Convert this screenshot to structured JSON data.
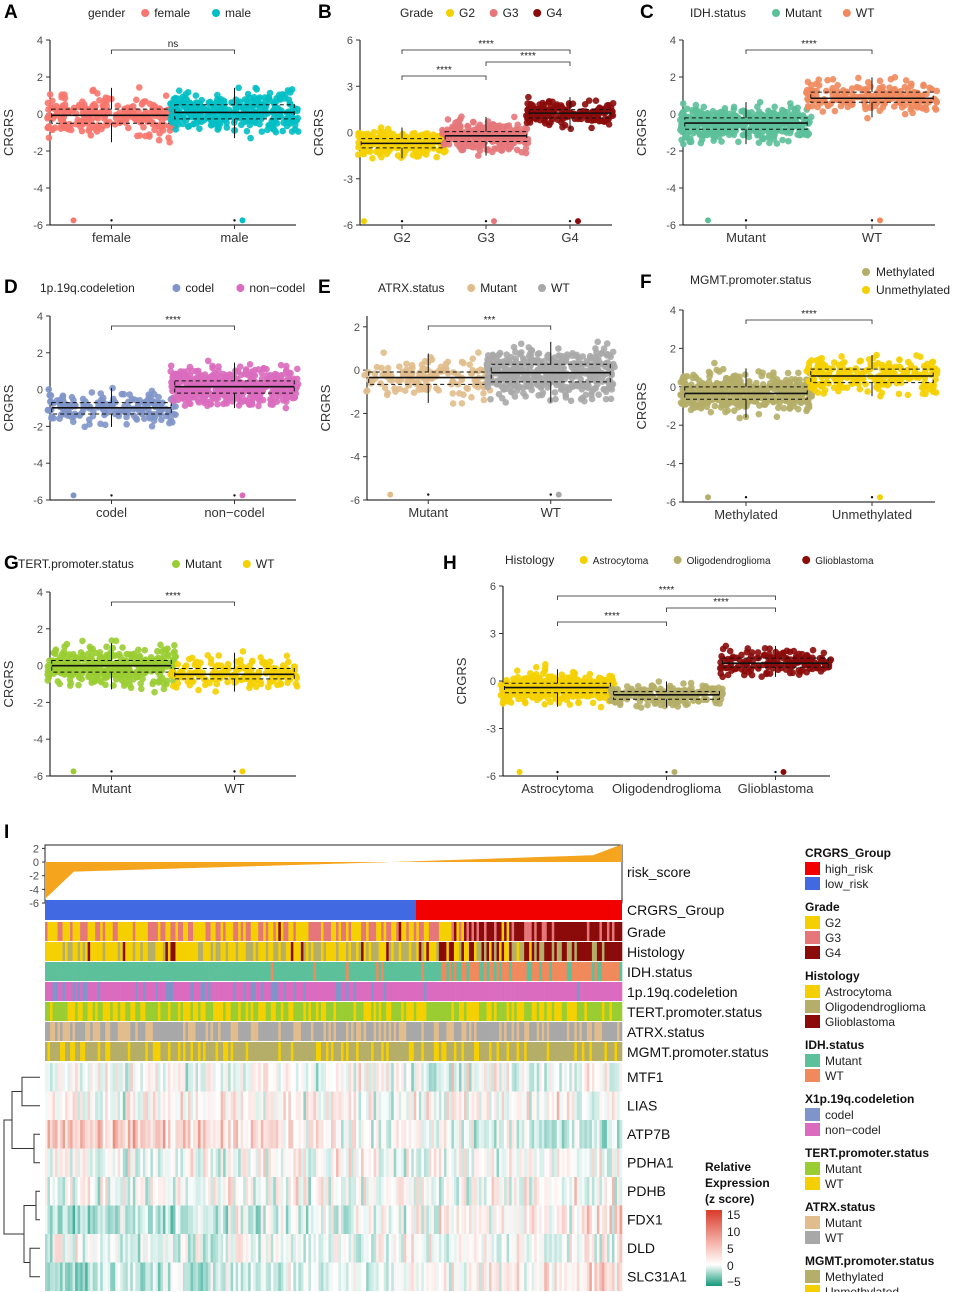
{
  "chart_data": [
    {
      "panel": "A",
      "type": "scatter",
      "legend_title": "gender",
      "ylabel": "CRGRS",
      "ylim": [
        -6,
        4
      ],
      "yticks": [
        -6,
        -4,
        -2,
        0,
        2,
        4
      ],
      "categories": [
        "female",
        "male"
      ],
      "colors": [
        "#F8766D",
        "#00BFC4"
      ],
      "medians": [
        -0.1,
        0.05
      ],
      "comparisons": [
        {
          "a": 0,
          "b": 1,
          "label": "ns"
        }
      ]
    },
    {
      "panel": "B",
      "type": "scatter",
      "legend_title": "Grade",
      "ylabel": "CRGRS",
      "ylim": [
        -6,
        6
      ],
      "yticks": [
        -6,
        -3,
        0,
        3,
        6
      ],
      "categories": [
        "G2",
        "G3",
        "G4"
      ],
      "colors": [
        "#F5D000",
        "#E5777A",
        "#8B0A0A"
      ],
      "medians": [
        -0.7,
        -0.2,
        1.2
      ],
      "comparisons": [
        {
          "a": 0,
          "b": 1,
          "label": "****"
        },
        {
          "a": 1,
          "b": 2,
          "label": "****"
        },
        {
          "a": 0,
          "b": 2,
          "label": "****"
        }
      ]
    },
    {
      "panel": "C",
      "type": "scatter",
      "legend_title": "IDH.status",
      "ylabel": "CRGRS",
      "ylim": [
        -6,
        4
      ],
      "yticks": [
        -6,
        -4,
        -2,
        0,
        2,
        4
      ],
      "categories": [
        "Mutant",
        "WT"
      ],
      "colors": [
        "#5CC09A",
        "#F08A5D"
      ],
      "medians": [
        -0.5,
        0.9
      ],
      "comparisons": [
        {
          "a": 0,
          "b": 1,
          "label": "****"
        }
      ]
    },
    {
      "panel": "D",
      "type": "scatter",
      "legend_title": "1p.19q.codeletion",
      "ylabel": "CRGRS",
      "ylim": [
        -6,
        4
      ],
      "yticks": [
        -6,
        -4,
        -2,
        0,
        2,
        4
      ],
      "categories": [
        "codel",
        "non−codel"
      ],
      "colors": [
        "#7F95C9",
        "#DA6BBE"
      ],
      "medians": [
        -1.0,
        0.2
      ],
      "comparisons": [
        {
          "a": 0,
          "b": 1,
          "label": "****"
        }
      ]
    },
    {
      "panel": "E",
      "type": "scatter",
      "legend_title": "ATRX.status",
      "ylabel": "CRGRS",
      "ylim": [
        -6,
        2.5
      ],
      "yticks": [
        -6,
        -4,
        -2,
        0,
        2
      ],
      "categories": [
        "Mutant",
        "WT"
      ],
      "colors": [
        "#E1BC8C",
        "#A8A8A8"
      ],
      "medians": [
        -0.4,
        -0.1
      ],
      "comparisons": [
        {
          "a": 0,
          "b": 1,
          "label": "***"
        }
      ]
    },
    {
      "panel": "F",
      "type": "scatter",
      "legend_title": "MGMT.promoter.status",
      "ylabel": "CRGRS",
      "ylim": [
        -6,
        4
      ],
      "yticks": [
        -6,
        -4,
        -2,
        0,
        2,
        4
      ],
      "categories": [
        "Methylated",
        "Unmethylated"
      ],
      "colors": [
        "#B5AE68",
        "#F5D000"
      ],
      "medians": [
        -0.3,
        0.6
      ],
      "comparisons": [
        {
          "a": 0,
          "b": 1,
          "label": "****"
        }
      ]
    },
    {
      "panel": "G",
      "type": "scatter",
      "legend_title": "TERT.promoter.status",
      "ylabel": "CRGRS",
      "ylim": [
        -6,
        4
      ],
      "yticks": [
        -6,
        -4,
        -2,
        0,
        2,
        4
      ],
      "categories": [
        "Mutant",
        "WT"
      ],
      "colors": [
        "#9ACD32",
        "#F5D000"
      ],
      "medians": [
        0.0,
        -0.4
      ],
      "comparisons": [
        {
          "a": 0,
          "b": 1,
          "label": "****"
        }
      ]
    },
    {
      "panel": "H",
      "type": "scatter",
      "legend_title": "Histology",
      "ylabel": "CRGRS",
      "ylim": [
        -6,
        6
      ],
      "yticks": [
        -6,
        -3,
        0,
        3,
        6
      ],
      "categories": [
        "Astrocytoma",
        "Oligodendroglioma",
        "Glioblastoma"
      ],
      "colors": [
        "#F5D000",
        "#B5AE68",
        "#8B0A0A"
      ],
      "medians": [
        -0.4,
        -0.9,
        1.2
      ],
      "comparisons": [
        {
          "a": 0,
          "b": 1,
          "label": "****"
        },
        {
          "a": 1,
          "b": 2,
          "label": "****"
        },
        {
          "a": 0,
          "b": 2,
          "label": "****"
        }
      ]
    },
    {
      "panel": "I",
      "type": "heatmap",
      "risk_score": {
        "label": "risk_score",
        "ylim": [
          -6,
          2.5
        ],
        "yticks": [
          2,
          0,
          -2,
          -4,
          -6
        ]
      },
      "annotation_rows": [
        "CRGRS_Group",
        "Grade",
        "Histology",
        "IDH.status",
        "1p.19q.codeletion",
        "TERT.promoter.status",
        "ATRX.status",
        "MGMT.promoter.status"
      ],
      "gene_rows": [
        "MTF1",
        "LIAS",
        "ATP7B",
        "PDHA1",
        "PDHB",
        "FDX1",
        "DLD",
        "SLC31A1"
      ],
      "color_scale": {
        "title_lines": [
          "Relative",
          "Expression",
          "(z score)"
        ],
        "ticks": [
          "15",
          "10",
          "5",
          "0",
          "−5"
        ]
      },
      "legend_groups": [
        {
          "title": "CRGRS_Group",
          "items": [
            {
              "label": "high_risk",
              "color": "#F20000"
            },
            {
              "label": "low_risk",
              "color": "#4169E1"
            }
          ]
        },
        {
          "title": "Grade",
          "items": [
            {
              "label": "G2",
              "color": "#F5D000"
            },
            {
              "label": "G3",
              "color": "#E5777A"
            },
            {
              "label": "G4",
              "color": "#8B0A0A"
            }
          ]
        },
        {
          "title": "Histology",
          "items": [
            {
              "label": "Astrocytoma",
              "color": "#F5D000"
            },
            {
              "label": "Oligodendroglioma",
              "color": "#B5AE68"
            },
            {
              "label": "Glioblastoma",
              "color": "#8B0A0A"
            }
          ]
        },
        {
          "title": "IDH.status",
          "items": [
            {
              "label": "Mutant",
              "color": "#5CC09A"
            },
            {
              "label": "WT",
              "color": "#F08A5D"
            }
          ]
        },
        {
          "title": "X1p.19q.codeletion",
          "items": [
            {
              "label": "codel",
              "color": "#7F95C9"
            },
            {
              "label": "non−codel",
              "color": "#DA6BBE"
            }
          ]
        },
        {
          "title": "TERT.promoter.status",
          "items": [
            {
              "label": "Mutant",
              "color": "#9ACD32"
            },
            {
              "label": "WT",
              "color": "#F5D000"
            }
          ]
        },
        {
          "title": "ATRX.status",
          "items": [
            {
              "label": "Mutant",
              "color": "#E1BC8C"
            },
            {
              "label": "WT",
              "color": "#A8A8A8"
            }
          ]
        },
        {
          "title": "MGMT.promoter.status",
          "items": [
            {
              "label": "Methylated",
              "color": "#B5AE68"
            },
            {
              "label": "Unmethylated",
              "color": "#F5D000"
            }
          ]
        }
      ]
    }
  ]
}
